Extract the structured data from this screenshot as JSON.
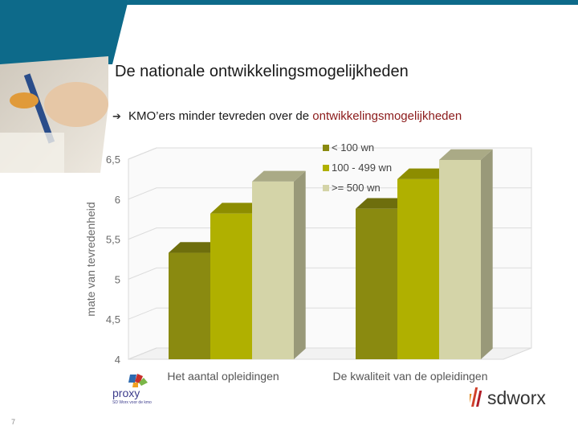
{
  "slide": {
    "title": "De nationale ontwikkelingsmogelijkheden",
    "bullet_prefix": "KMO’ers minder tevreden over de ",
    "bullet_highlight": "ontwikkelingsmogelijkheden",
    "page_number": "7",
    "colors": {
      "teal": "#0d6a8a",
      "highlight": "#8b1a1a"
    }
  },
  "logos": {
    "proxy_text": "proxy",
    "proxy_tagline": "SD Worx voor de kmo",
    "sdworx_text": "sdworx"
  },
  "chart_data": {
    "type": "bar",
    "categories": [
      "Het aantal opleidingen",
      "De kwaliteit van de opleidingen"
    ],
    "series": [
      {
        "name": "< 100 wn",
        "color": "#8a8a10",
        "values": [
          5.33,
          5.88
        ]
      },
      {
        "name": "100 - 499 wn",
        "color": "#b0b000",
        "values": [
          5.82,
          6.25
        ]
      },
      {
        "name": ">= 500 wn",
        "color": "#d4d4a8",
        "values": [
          6.22,
          6.49
        ]
      }
    ],
    "ylabel": "mate van tevredenheid",
    "ylim": [
      4,
      6.5
    ],
    "yticks": [
      "4",
      "4,5",
      "5",
      "5,5",
      "6",
      "6,5"
    ],
    "grid": true,
    "legend": "top-center"
  }
}
